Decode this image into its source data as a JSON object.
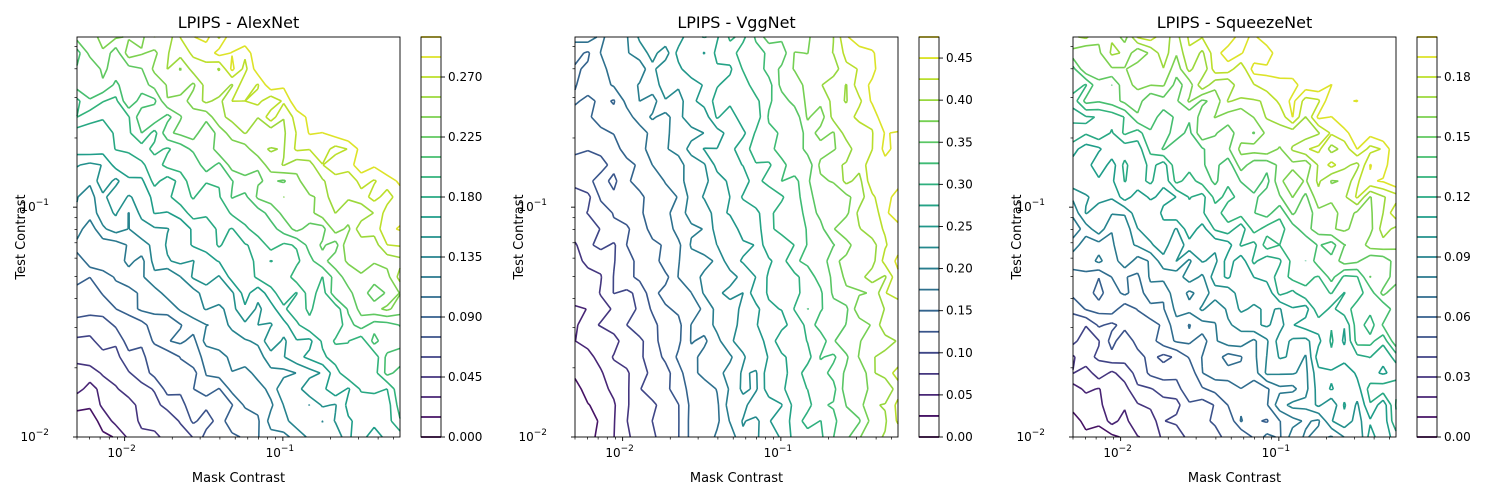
{
  "chart_data": [
    {
      "type": "contour",
      "title": "LPIPS - AlexNet",
      "xlabel": "Mask Contrast",
      "ylabel": "Test Contrast",
      "xscale": "log",
      "yscale": "log",
      "xlim": [
        0.005,
        0.55
      ],
      "ylim": [
        0.01,
        0.55
      ],
      "x_ticks": [
        {
          "base": "10",
          "exp": "−2",
          "value": 0.01
        },
        {
          "base": "10",
          "exp": "−1",
          "value": 0.1
        }
      ],
      "y_ticks": [
        {
          "base": "10",
          "exp": "−2",
          "value": 0.01
        },
        {
          "base": "10",
          "exp": "−1",
          "value": 0.1
        }
      ],
      "levels": [
        0.0,
        0.015,
        0.03,
        0.045,
        0.06,
        0.075,
        0.09,
        0.105,
        0.12,
        0.135,
        0.15,
        0.165,
        0.18,
        0.195,
        0.21,
        0.225,
        0.24,
        0.255,
        0.27,
        0.285,
        0.3
      ],
      "colorbar_ticks": [
        "0.000",
        "0.045",
        "0.090",
        "0.135",
        "0.180",
        "0.225",
        "0.270"
      ],
      "colorbar_tick_values": [
        0.0,
        0.045,
        0.09,
        0.135,
        0.18,
        0.225,
        0.27
      ],
      "model": {
        "zmax": 0.3,
        "a": 0.21,
        "b": 0.26,
        "p": 1.2,
        "noise": 0.06,
        "seed": 11
      }
    },
    {
      "type": "contour",
      "title": "LPIPS - VggNet",
      "xlabel": "Mask Contrast",
      "ylabel": "Test Contrast",
      "xscale": "log",
      "yscale": "log",
      "xlim": [
        0.005,
        0.55
      ],
      "ylim": [
        0.01,
        0.55
      ],
      "x_ticks": [
        {
          "base": "10",
          "exp": "−2",
          "value": 0.01
        },
        {
          "base": "10",
          "exp": "−1",
          "value": 0.1
        }
      ],
      "y_ticks": [
        {
          "base": "10",
          "exp": "−2",
          "value": 0.01
        },
        {
          "base": "10",
          "exp": "−1",
          "value": 0.1
        }
      ],
      "levels": [
        0.0,
        0.025,
        0.05,
        0.075,
        0.1,
        0.125,
        0.15,
        0.175,
        0.2,
        0.225,
        0.25,
        0.275,
        0.3,
        0.325,
        0.35,
        0.375,
        0.4,
        0.425,
        0.45,
        0.475
      ],
      "colorbar_ticks": [
        "0.00",
        "0.05",
        "0.10",
        "0.15",
        "0.20",
        "0.25",
        "0.30",
        "0.35",
        "0.40",
        "0.45"
      ],
      "colorbar_tick_values": [
        0.0,
        0.05,
        0.1,
        0.15,
        0.2,
        0.25,
        0.3,
        0.35,
        0.4,
        0.45
      ],
      "model": {
        "zmax": 0.48,
        "a": 0.29,
        "b": 0.12,
        "p": 1.4,
        "noise": 0.045,
        "seed": 23
      }
    },
    {
      "type": "contour",
      "title": "LPIPS - SqueezeNet",
      "xlabel": "Mask Contrast",
      "ylabel": "Test Contrast",
      "xscale": "log",
      "yscale": "log",
      "xlim": [
        0.005,
        0.55
      ],
      "ylim": [
        0.01,
        0.55
      ],
      "x_ticks": [
        {
          "base": "10",
          "exp": "−2",
          "value": 0.01
        },
        {
          "base": "10",
          "exp": "−1",
          "value": 0.1
        }
      ],
      "y_ticks": [
        {
          "base": "10",
          "exp": "−2",
          "value": 0.01
        },
        {
          "base": "10",
          "exp": "−1",
          "value": 0.1
        }
      ],
      "levels": [
        0.0,
        0.01,
        0.02,
        0.03,
        0.04,
        0.05,
        0.06,
        0.07,
        0.08,
        0.09,
        0.1,
        0.11,
        0.12,
        0.13,
        0.14,
        0.15,
        0.16,
        0.17,
        0.18,
        0.19,
        0.2
      ],
      "colorbar_ticks": [
        "0.00",
        "0.03",
        "0.06",
        "0.09",
        "0.12",
        "0.15",
        "0.18"
      ],
      "colorbar_tick_values": [
        0.0,
        0.03,
        0.06,
        0.09,
        0.12,
        0.15,
        0.18
      ],
      "model": {
        "zmax": 0.2,
        "a": 0.19,
        "b": 0.27,
        "p": 1.25,
        "noise": 0.075,
        "seed": 37
      }
    }
  ]
}
